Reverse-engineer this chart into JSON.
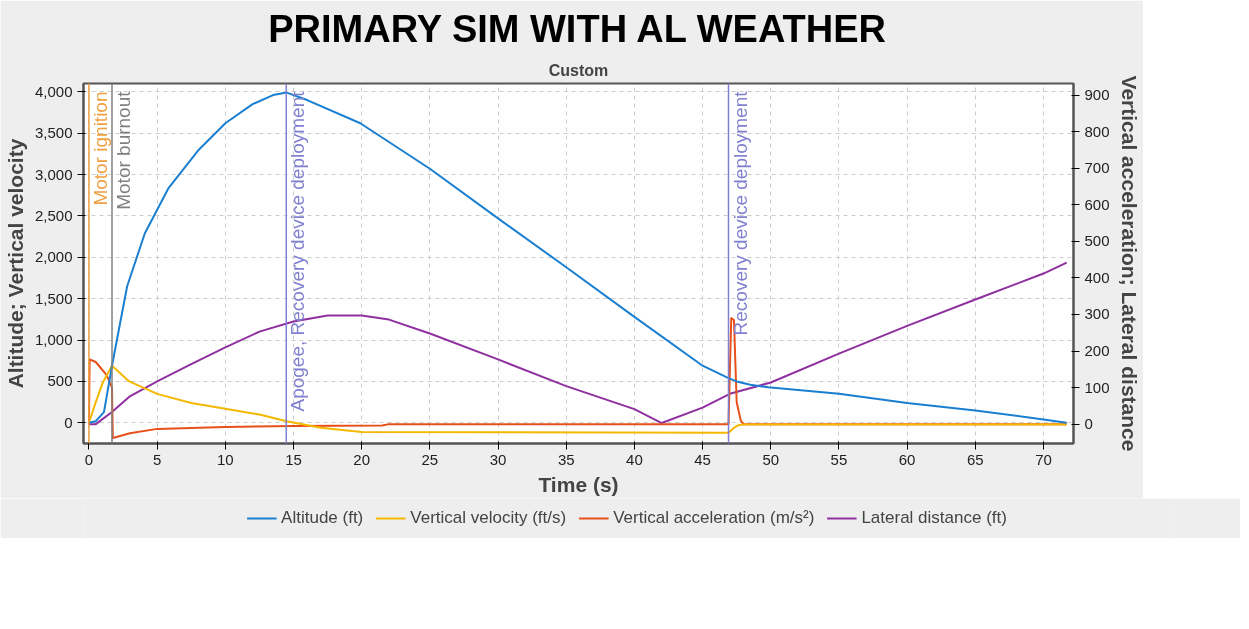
{
  "chart_data": {
    "type": "line",
    "title": "PRIMARY SIM WITH AL WEATHER",
    "subtitle": "Custom",
    "xlabel": "Time (s)",
    "ylabel": "Altitude; Vertical velocity",
    "y2label": "Vertical acceleration; Lateral distance",
    "xlim": [
      -0.4,
      72.2
    ],
    "xticks": [
      0,
      5,
      10,
      15,
      20,
      25,
      30,
      35,
      40,
      45,
      50,
      55,
      60,
      65,
      70
    ],
    "ylim": [
      -250,
      4100
    ],
    "yticks": [
      0,
      {
        "value": 500,
        "label": "500"
      },
      {
        "value": 1000,
        "label": "1,000"
      },
      {
        "value": 1500,
        "label": "1,500"
      },
      {
        "value": 2000,
        "label": "2,000"
      },
      {
        "value": 2500,
        "label": "2,500"
      },
      {
        "value": 3000,
        "label": "3,000"
      },
      {
        "value": 3500,
        "label": "3,500"
      },
      {
        "value": 4000,
        "label": "4,000"
      }
    ],
    "y2lim": [
      -53,
      932
    ],
    "y2ticks": [
      0,
      100,
      200,
      300,
      400,
      500,
      600,
      700,
      800,
      900
    ],
    "grid": true,
    "legend": "bottom",
    "marker": "none",
    "line_style": "solid",
    "series": [
      {
        "name": "Altitude (ft)",
        "color": "#1a7fd0",
        "x": [
          0,
          0.5,
          1.1,
          1.69,
          2.8,
          4.1,
          5.85,
          8,
          10,
          12,
          13.5,
          14.5,
          16,
          19.9,
          25,
          30,
          35,
          40,
          45,
          46.9,
          47.5,
          48.5,
          49.8,
          55,
          60,
          65,
          70,
          71.7
        ],
        "values": [
          0,
          20,
          130,
          690,
          1650,
          2290,
          2840,
          3290,
          3620,
          3850,
          3960,
          3990,
          3900,
          3620,
          3070,
          2470,
          1880,
          1280,
          690,
          540,
          500,
          460,
          430,
          350,
          240,
          150,
          40,
          0
        ]
      },
      {
        "name": "Vertical velocity (ft/s)",
        "color": "#f5b800",
        "x": [
          0,
          0.5,
          1,
          1.69,
          2.95,
          5,
          7.5,
          10,
          12.5,
          14.5,
          17,
          20,
          46.9,
          47.3,
          47.6,
          48,
          55,
          65,
          71.7
        ],
        "values": [
          0,
          250,
          480,
          690,
          500,
          350,
          240,
          170,
          100,
          20,
          -60,
          -110,
          -120,
          -60,
          -30,
          -20,
          -20,
          -20,
          -20
        ]
      },
      {
        "name": "Vertical acceleration (m/s²)",
        "color": "#e8501a",
        "axis": "y2",
        "x": [
          0,
          0.05,
          0.5,
          1.3,
          1.69,
          1.75,
          3,
          5,
          10,
          15,
          21.5,
          22,
          46.9,
          47.1,
          47.3,
          47.5,
          47.8,
          48,
          60,
          71.7
        ],
        "values": [
          0,
          177,
          170,
          134,
          100,
          -38,
          -25,
          -13,
          -8,
          -5,
          -4,
          0,
          0,
          290,
          285,
          60,
          10,
          0,
          0,
          0
        ]
      },
      {
        "name": "Lateral distance (ft)",
        "color": "#9030a0",
        "axis": "y2",
        "x": [
          0,
          0.5,
          1.69,
          3,
          5,
          7.5,
          10,
          12.5,
          15,
          17.5,
          20,
          22,
          25,
          30,
          35,
          40,
          42,
          45,
          47,
          50,
          55,
          60,
          65,
          70,
          71.7
        ],
        "values": [
          0,
          0,
          33,
          76,
          117,
          164,
          210,
          253,
          281,
          297,
          297,
          286,
          248,
          177,
          104,
          41,
          3,
          45,
          83,
          114,
          193,
          269,
          341,
          412,
          442
        ]
      }
    ],
    "ref_lines": [
      {
        "axis": "x",
        "value": 0,
        "label": "Motor ignition",
        "color": "#f0a040",
        "line_style": "solid"
      },
      {
        "axis": "x",
        "value": 1.69,
        "label": "Motor burnout",
        "color": "#808080",
        "line_style": "solid"
      },
      {
        "axis": "x",
        "value": 14.47,
        "label": "Apogee, Recovery device deployment",
        "color": "#8080d0",
        "line_style": "solid"
      },
      {
        "axis": "x",
        "value": 46.9,
        "label": "Recovery device deployment",
        "color": "#8080d0",
        "line_style": "solid"
      }
    ]
  }
}
